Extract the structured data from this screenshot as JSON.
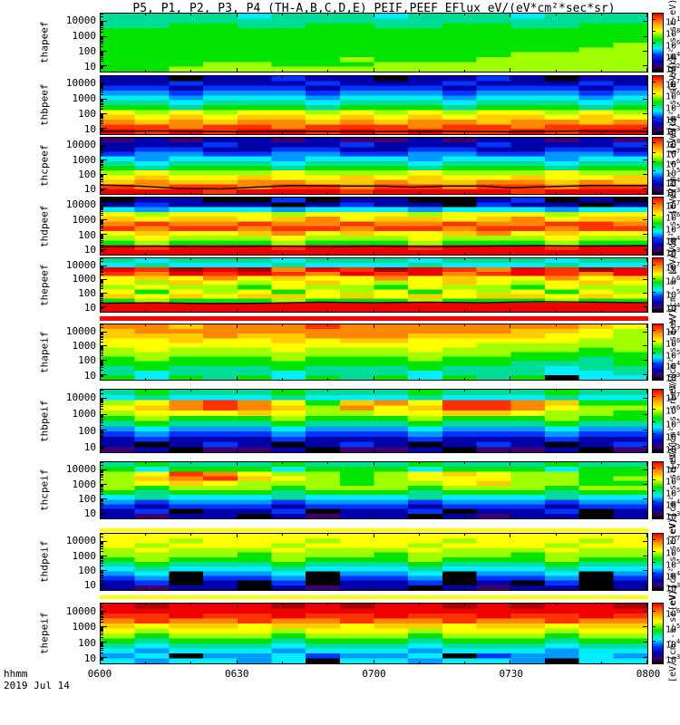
{
  "title": "P5, P1, P2, P3, P4 (TH-A,B,C,D,E) PEIF,PEEF EFlux eV/(eV*cm²*sec*sr)",
  "xaxis": {
    "label": "hhmm",
    "date": "2019 Jul 14",
    "ticks": [
      "0600",
      "0630",
      "0700",
      "0730",
      "0800"
    ]
  },
  "chart_data": {
    "type": "heatmap",
    "subtype": "energy-time-spectrogram",
    "time_range": [
      "0600",
      "0800"
    ],
    "time_tick_labels": [
      "0600",
      "0630",
      "0700",
      "0730",
      "0800"
    ],
    "energy_axis": {
      "scale": "log",
      "unit": "eV",
      "tick_values": [
        10000,
        1000,
        100,
        10
      ],
      "tick_labels": [
        "10000",
        "1000",
        "100",
        "10"
      ],
      "approx_range_log10": [
        0.6,
        4.5
      ]
    },
    "flux_unit": "eV/(eV*cm²*sec*sr)",
    "colorbar_unit": "[eV/(cm²-s-sr-eV)]",
    "palette": [
      "#000000",
      "#40006f",
      "#0000aa",
      "#0033ff",
      "#0099ff",
      "#00eeff",
      "#00dd99",
      "#00e400",
      "#a0ff00",
      "#ffff00",
      "#ffcc00",
      "#ff8800",
      "#ff3300",
      "#ee0000",
      "#aa0000"
    ],
    "separators": [
      {
        "after_panel": "the peef",
        "color": "#ff0000"
      },
      {
        "after_panel": "thc peif",
        "color": "#ffff00"
      },
      {
        "after_panel": "thd peif",
        "color": "#ffff00"
      }
    ],
    "panels": [
      {
        "id": "tha-peef",
        "label_lines": [
          "tha",
          "peef"
        ],
        "colorbar_exponents": [
          10,
          8,
          6,
          4,
          2
        ],
        "grid": [
          "6666566656665666",
          "6666666666666666",
          "6677667766776677",
          "7777777777777777",
          "7777777777777777",
          "7777777777777777",
          "7777777777777778",
          "7777777777777788",
          "7777777777778888",
          "7777777877788888",
          "7778877788888888",
          "7788888888888888"
        ],
        "overline": []
      },
      {
        "id": "thb-peef",
        "label_lines": [
          "thb",
          "peef"
        ],
        "colorbar_exponents": [
          7,
          6,
          5,
          4,
          3
        ],
        "grid": [
          "2202232202232022",
          "2232223222322232",
          "3323332333233323",
          "4434443444344434",
          "5545554555455545",
          "6656665666566656",
          "7767776777677767",
          "9898998989899898",
          "a9a9aa9a9a9aa9a9",
          "bababbababbabbab",
          "ccbccbcccbccbccc",
          "dcdcddcdcdccdcdd"
        ],
        "overline": [
          [
            0,
            95
          ],
          [
            12,
            94.5
          ],
          [
            25,
            96
          ],
          [
            37,
            95
          ],
          [
            50,
            95.5
          ],
          [
            62,
            95
          ],
          [
            75,
            96
          ],
          [
            87,
            94.5
          ],
          [
            100,
            95.5
          ]
        ]
      },
      {
        "id": "thc-peef",
        "label_lines": [
          "thc",
          "peef"
        ],
        "colorbar_exponents": [
          8,
          7,
          6,
          5,
          4,
          3
        ],
        "grid": [
          "1212212112122121",
          "2223222322232223",
          "2332233223322332",
          "3443344334433443",
          "5455545554555455",
          "6566656665666566",
          "7677767776777677",
          "8988898889888988",
          "9a99a99a9a99a99a",
          "abaabbaabaabbaba",
          "cbccbccbccbccbcc",
          "dddcdddcddddcddd"
        ],
        "overline": [
          [
            0,
            84
          ],
          [
            7,
            86
          ],
          [
            14,
            90
          ],
          [
            22,
            91
          ],
          [
            28,
            88
          ],
          [
            35,
            85
          ],
          [
            45,
            86
          ],
          [
            52,
            86
          ],
          [
            57,
            88
          ],
          [
            63,
            86
          ],
          [
            70,
            86
          ],
          [
            75,
            89
          ],
          [
            82,
            87
          ],
          [
            90,
            85
          ],
          [
            100,
            85
          ]
        ]
      },
      {
        "id": "thd-peef",
        "label_lines": [
          "thd",
          "peef"
        ],
        "colorbar_exponents": [
          7,
          6,
          5,
          4,
          3
        ],
        "grid": [
          "0220030220023020",
          "2322202322032202",
          "5455545554555455",
          "9899989998999899",
          "a9aa9ab9aa9ab9aa",
          "bcbbcbbcbbcbbccb",
          "cbccbccbccbccbcc",
          "9a99ab9a99ab9a99",
          "8988898889888988",
          "7877787778777877",
          "dcdddcdddcdddcdd",
          "dddddddddddddddd"
        ],
        "overline": [
          [
            0,
            86
          ],
          [
            10,
            85
          ],
          [
            20,
            86
          ],
          [
            30,
            85
          ],
          [
            40,
            86
          ],
          [
            50,
            85
          ],
          [
            60,
            86
          ],
          [
            70,
            85
          ],
          [
            80,
            84
          ],
          [
            90,
            85
          ],
          [
            100,
            84
          ]
        ]
      },
      {
        "id": "the-peef",
        "label_lines": [
          "the",
          "peef"
        ],
        "colorbar_exponents": [
          7,
          6,
          5,
          4
        ],
        "grid": [
          "6566656665666566",
          "5655565556555655",
          "dcedebdcedcbdced",
          "cbdcdcbdcdbcdcbd",
          "9a9b9a99b9a99b9a",
          "98a989a989a989a9",
          "8988798879887988",
          "9798979897989798",
          "a9a9aa9a9a9aa9a9",
          "7877787778777877",
          "dddddddddddddddd",
          "dddddddddddddddd"
        ],
        "overline": [
          [
            0,
            84
          ],
          [
            10,
            83
          ],
          [
            20,
            85
          ],
          [
            30,
            84
          ],
          [
            40,
            82
          ],
          [
            50,
            83
          ],
          [
            60,
            82
          ],
          [
            70,
            83
          ],
          [
            80,
            81
          ],
          [
            90,
            82
          ],
          [
            100,
            83
          ]
        ]
      },
      {
        "id": "tha-peif",
        "label_lines": [
          "tha",
          "peif"
        ],
        "colorbar_exponents": [
          7,
          6,
          5,
          4,
          3
        ],
        "grid": [
          "bbabbbcbbbbbbba9",
          "abbbbbbbbbbbaa98",
          "aaabaabbbaaaa998",
          "99a99a9aa9999988",
          "9999999999988888",
          "8988898889888878",
          "8888888888887777",
          "7877787778777767",
          "7777777777776667",
          "6766676667666566",
          "6566656665666556",
          "7576757675767055"
        ],
        "overline": []
      },
      {
        "id": "thb-peif",
        "label_lines": [
          "thb",
          "peif"
        ],
        "colorbar_exponents": [
          7,
          6,
          5,
          4,
          3
        ],
        "grid": [
          "6766676667666766",
          "5655565556555655",
          "89bcb97ab9ccba77",
          "9abcba8b9accb988",
          "8999a98899aa9887",
          "7877787778777877",
          "6766676667666766",
          "4544454445444544",
          "3433343334333433",
          "2322232223222322",
          "2023202320232023",
          "1201120112011201"
        ],
        "overline": []
      },
      {
        "id": "thc-peif",
        "label_lines": [
          "thc",
          "peif"
        ],
        "colorbar_exponents": [
          7,
          6,
          5,
          4,
          3
        ],
        "grid": [
          "6766676667666766",
          "7577757775777577",
          "89cb988789a98877",
          "8abca98789998878",
          "89a98887889a8877",
          "8788878887888788",
          "7677767776777677",
          "5655565556555655",
          "4344434443444344",
          "3233323332333233",
          "2302230223022302",
          "2122021220212202"
        ],
        "overline": []
      },
      {
        "id": "thd-peif",
        "label_lines": [
          "thd",
          "peif"
        ],
        "colorbar_exponents": [
          7,
          6,
          5,
          4,
          3
        ],
        "grid": [
          "9999999999999999",
          "9989998999899989",
          "9899989998999899",
          "8988898889888988",
          "8888788878887888",
          "7877787778777877",
          "6766676667666766",
          "5655565556555655",
          "4504450445044504",
          "3403340334033403",
          "2302030223020302",
          "2122021220212202"
        ],
        "overline": []
      },
      {
        "id": "the-peif",
        "label_lines": [
          "the",
          "peif"
        ],
        "colorbar_exponents": [
          6,
          5,
          4,
          3
        ],
        "grid": [
          "dedddededdededde",
          "dddddddddddddddd",
          "ccdccdccdccdccdc",
          "bcbbcbbcbbcbbcbb",
          "a9aa9aa9aa9aa9aa",
          "9899989998999899",
          "8788878887888788",
          "7677767776777677",
          "6566656665666566",
          "5455545554555455",
          "4504453445034454",
          "5455450554554055"
        ],
        "overline": []
      }
    ]
  }
}
